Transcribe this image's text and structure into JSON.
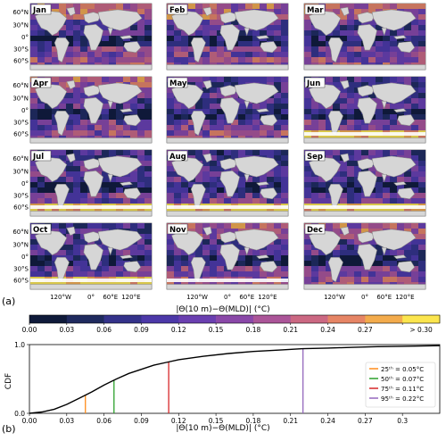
{
  "panel_labels": {
    "a": "(a)",
    "b": "(b)"
  },
  "months": [
    "Jan",
    "Feb",
    "Mar",
    "Apr",
    "May",
    "Jun",
    "Jul",
    "Aug",
    "Sep",
    "Oct",
    "Nov",
    "Dec"
  ],
  "map_axes": {
    "lat_ticks": [
      "60°N",
      "30°N",
      "0°",
      "30°S",
      "60°S"
    ],
    "lon_ticks": [
      "120°W",
      "0°",
      "60°E",
      "120°E"
    ]
  },
  "colorbar": {
    "title": "|Θ(10 m)−Θ(MLD)| (°C)",
    "tick_labels": [
      "0.00",
      "0.03",
      "0.06",
      "0.09",
      "0.12",
      "0.15",
      "0.18",
      "0.21",
      "0.24",
      "0.27",
      "> 0.30"
    ],
    "colors": [
      "#0f1a3a",
      "#1f2a5e",
      "#34328a",
      "#4c38a8",
      "#6a3fb0",
      "#8a48a8",
      "#ab5598",
      "#cb6882",
      "#e68565",
      "#f3ab4c",
      "#fbe54e"
    ]
  },
  "colors": {
    "ocean_dark": "#0f1a3a",
    "land": "#d6d6d6",
    "land_edge": "#8a8a8a",
    "sea_ice": "#ffffff",
    "curve": "#000000"
  },
  "chart_data": {
    "type": "line",
    "title": "",
    "xlabel": "|Θ(10 m)−Θ(MLD)| (°C)",
    "ylabel": "CDF",
    "xlim": [
      0,
      0.33
    ],
    "ylim": [
      0,
      1
    ],
    "x_ticks": [
      "0.00",
      "0.03",
      "0.06",
      "0.09",
      "0.12",
      "0.15",
      "0.18",
      "0.21",
      "0.24",
      "0.27",
      "0.3"
    ],
    "y_ticks": [
      "0.0",
      "1.0"
    ],
    "grid": false,
    "legend_position": "right",
    "series": [
      {
        "x": [
          0.0,
          0.01,
          0.02,
          0.03,
          0.04,
          0.05,
          0.06,
          0.07,
          0.08,
          0.09,
          0.1,
          0.11,
          0.12,
          0.14,
          0.16,
          0.18,
          0.2,
          0.22,
          0.24,
          0.26,
          0.28,
          0.3,
          0.33
        ],
        "y": [
          0.0,
          0.02,
          0.06,
          0.13,
          0.22,
          0.31,
          0.41,
          0.5,
          0.58,
          0.64,
          0.7,
          0.74,
          0.78,
          0.83,
          0.87,
          0.9,
          0.92,
          0.94,
          0.95,
          0.96,
          0.97,
          0.975,
          0.985
        ]
      }
    ],
    "percentiles": [
      {
        "label": "25ᵗʰ = 0.05°C",
        "x": 0.045,
        "color": "#ff8c1a"
      },
      {
        "label": "50ᵗʰ = 0.07°C",
        "x": 0.068,
        "color": "#2ca02c"
      },
      {
        "label": "75ᵗʰ = 0.11°C",
        "x": 0.112,
        "color": "#d62728"
      },
      {
        "label": "95ᵗʰ = 0.22°C",
        "x": 0.22,
        "color": "#9467bd"
      }
    ]
  }
}
